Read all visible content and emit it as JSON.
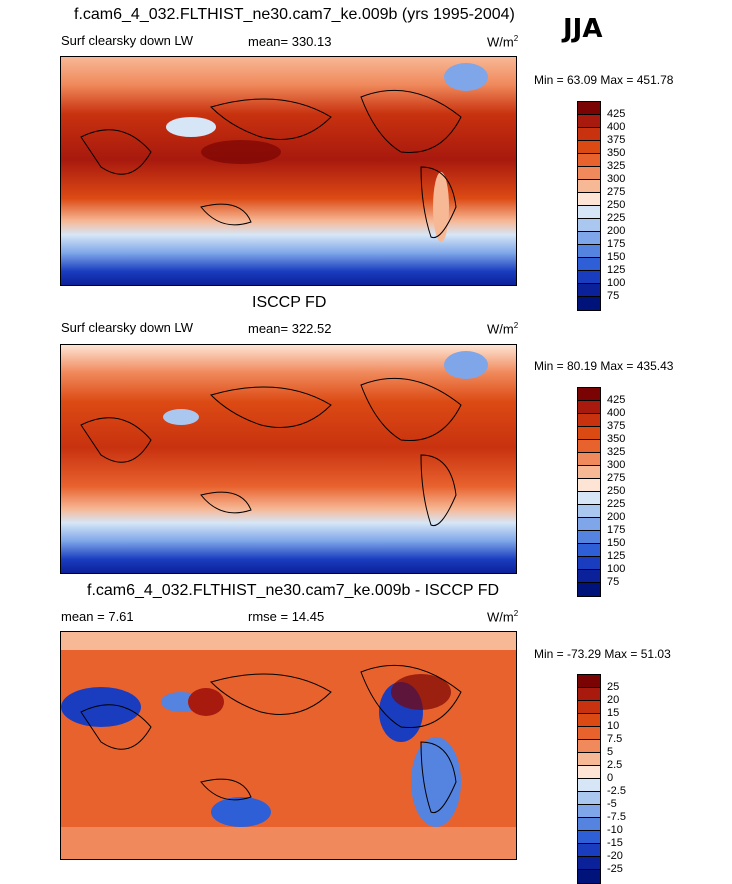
{
  "season": "JJA",
  "panels": [
    {
      "title": "f.cam6_4_032.FLTHIST_ne30.cam7_ke.009b (yrs 1995-2004)",
      "variable": "Surf clearsky down LW",
      "stat": "mean= 330.13",
      "units": "W/m",
      "units_exp": "2",
      "minmax": "Min =  63.09 Max = 451.78",
      "levels": [
        "425",
        "400",
        "375",
        "350",
        "325",
        "300",
        "275",
        "250",
        "225",
        "200",
        "175",
        "150",
        "125",
        "100",
        "75"
      ]
    },
    {
      "title": "ISCCP FD",
      "variable": "Surf clearsky down LW",
      "stat": "mean= 322.52",
      "units": "W/m",
      "units_exp": "2",
      "minmax": "Min =  80.19 Max = 435.43",
      "levels": [
        "425",
        "400",
        "375",
        "350",
        "325",
        "300",
        "275",
        "250",
        "225",
        "200",
        "175",
        "150",
        "125",
        "100",
        "75"
      ]
    },
    {
      "title": "f.cam6_4_032.FLTHIST_ne30.cam7_ke.009b - ISCCP FD",
      "variable": "mean =   7.61",
      "stat": "rmse =  14.45",
      "units": "W/m",
      "units_exp": "2",
      "minmax": "Min = -73.29 Max =  51.03",
      "levels": [
        "25",
        "20",
        "15",
        "10",
        "7.5",
        "5",
        "2.5",
        "0",
        "-2.5",
        "-5",
        "-7.5",
        "-10",
        "-15",
        "-20",
        "-25"
      ]
    }
  ],
  "colors": {
    "scale": [
      "#7a0403",
      "#a8190e",
      "#c8320f",
      "#dc4a14",
      "#e8622e",
      "#f08a5c",
      "#f7b896",
      "#fde4d4",
      "#d6e6f7",
      "#aac8ef",
      "#7ea6e8",
      "#5583e0",
      "#2f5fd6",
      "#1a3dbf",
      "#0b2199",
      "#00137a"
    ]
  }
}
